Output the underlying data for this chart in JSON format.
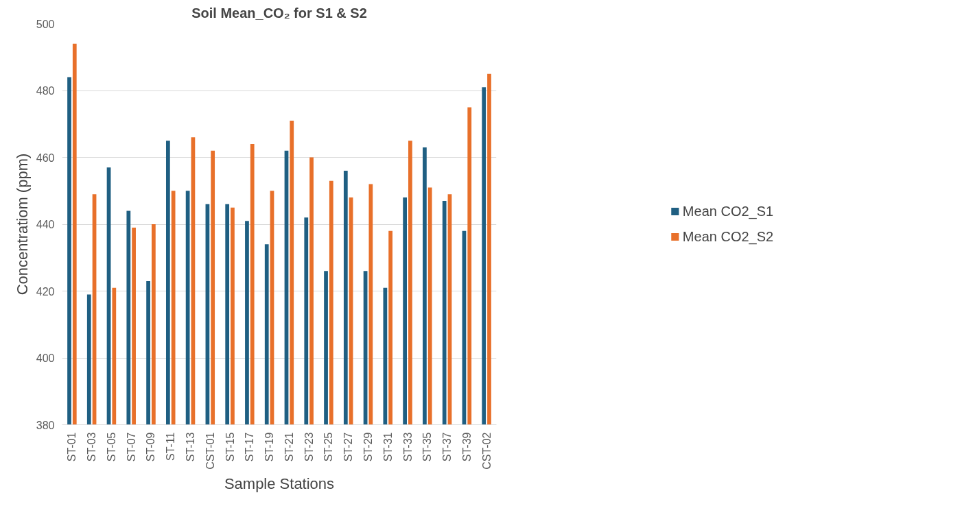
{
  "chart_data": {
    "type": "bar",
    "title": "Soil Mean_CO₂ for S1 & S2",
    "xlabel": "Sample Stations",
    "ylabel": "Concentratiom (ppm)",
    "categories": [
      "ST-01",
      "ST-03",
      "ST-05",
      "ST-07",
      "ST-09",
      "ST-11",
      "ST-13",
      "CST-01",
      "ST-15",
      "ST-17",
      "ST-19",
      "ST-21",
      "ST-23",
      "ST-25",
      "ST-27",
      "ST-29",
      "ST-31",
      "ST-33",
      "ST-35",
      "ST-37",
      "ST-39",
      "CST-02"
    ],
    "series": [
      {
        "name": "Mean CO2_S1",
        "color": "#1f5f82",
        "values": [
          484,
          419,
          457,
          444,
          423,
          465,
          450,
          446,
          446,
          441,
          434,
          462,
          442,
          426,
          456,
          426,
          421,
          448,
          463,
          447,
          438,
          481
        ]
      },
      {
        "name": "Mean CO2_S2",
        "color": "#e8702a",
        "values": [
          494,
          449,
          421,
          439,
          440,
          450,
          466,
          462,
          445,
          464,
          450,
          471,
          460,
          453,
          448,
          452,
          438,
          465,
          451,
          449,
          475,
          485
        ]
      }
    ],
    "ylim": [
      380,
      500
    ],
    "yticks": [
      380,
      400,
      420,
      440,
      460,
      480,
      500
    ],
    "grid": "y",
    "legend": "right"
  }
}
